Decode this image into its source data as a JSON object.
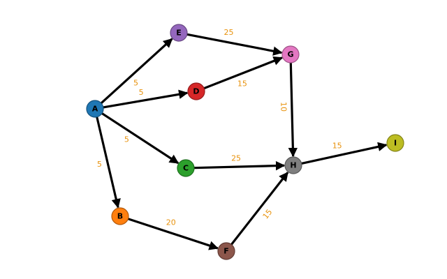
{
  "diagram": {
    "type": "directed-weighted-graph",
    "edge_color": "#000000",
    "label_color": "#e8920c",
    "nodes": [
      {
        "id": "A",
        "label": "A",
        "fill": "#1f77b4"
      },
      {
        "id": "B",
        "label": "B",
        "fill": "#ff7f0e"
      },
      {
        "id": "C",
        "label": "C",
        "fill": "#2ca02c"
      },
      {
        "id": "D",
        "label": "D",
        "fill": "#d62728"
      },
      {
        "id": "E",
        "label": "E",
        "fill": "#9467bd"
      },
      {
        "id": "F",
        "label": "F",
        "fill": "#8c564b"
      },
      {
        "id": "G",
        "label": "G",
        "fill": "#e377c2"
      },
      {
        "id": "H",
        "label": "H",
        "fill": "#7f7f7f"
      },
      {
        "id": "I",
        "label": "I",
        "fill": "#bcbd22"
      }
    ],
    "edges": [
      {
        "from": "A",
        "to": "E",
        "weight": "5"
      },
      {
        "from": "A",
        "to": "D",
        "weight": "5"
      },
      {
        "from": "A",
        "to": "C",
        "weight": "5"
      },
      {
        "from": "A",
        "to": "B",
        "weight": "5"
      },
      {
        "from": "E",
        "to": "G",
        "weight": "25"
      },
      {
        "from": "D",
        "to": "G",
        "weight": "15"
      },
      {
        "from": "G",
        "to": "H",
        "weight": "10"
      },
      {
        "from": "C",
        "to": "H",
        "weight": "25"
      },
      {
        "from": "B",
        "to": "F",
        "weight": "20"
      },
      {
        "from": "F",
        "to": "H",
        "weight": "15"
      },
      {
        "from": "H",
        "to": "I",
        "weight": "15"
      }
    ]
  }
}
